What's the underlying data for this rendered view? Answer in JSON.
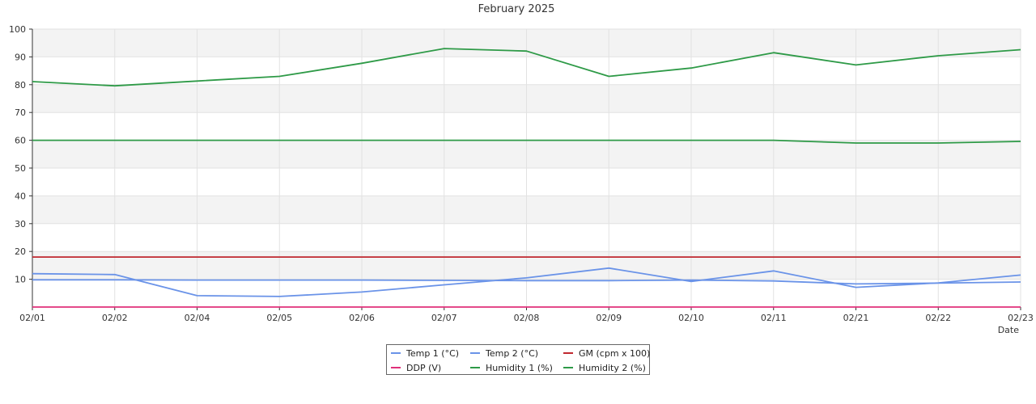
{
  "chart_data": {
    "type": "line",
    "title": "February 2025",
    "xlabel": "Date",
    "ylabel": "",
    "ylim": [
      0,
      100
    ],
    "yticks": [
      10,
      20,
      30,
      40,
      50,
      60,
      70,
      80,
      90,
      100
    ],
    "grid": true,
    "legend_position": "bottom-center",
    "x": [
      "02/01",
      "02/02",
      "02/04",
      "02/05",
      "02/06",
      "02/07",
      "02/08",
      "02/09",
      "02/10",
      "02/11",
      "02/21",
      "02/22",
      "02/23"
    ],
    "series": [
      {
        "name": "Temp 1 (°C)",
        "color": "#6a93e8",
        "values": [
          9.8,
          9.8,
          9.7,
          9.7,
          9.7,
          9.6,
          9.5,
          9.5,
          9.7,
          9.4,
          8.3,
          8.6,
          9.0
        ]
      },
      {
        "name": "Temp 2 (°C)",
        "color": "#6a93e8",
        "values": [
          12.0,
          11.7,
          4.1,
          3.8,
          5.4,
          8.0,
          10.5,
          14.0,
          9.2,
          13.0,
          7.1,
          8.7,
          11.5
        ]
      },
      {
        "name": "GM (cpm x 100)",
        "color": "#c0282f",
        "values": [
          18.0,
          18.0,
          18.0,
          18.0,
          18.0,
          18.0,
          18.0,
          18.0,
          18.0,
          18.0,
          18.0,
          18.0,
          18.0
        ]
      },
      {
        "name": "DDP (V)",
        "color": "#e0307a",
        "values": [
          0,
          0,
          0,
          0,
          0,
          0,
          0,
          0,
          0,
          0,
          0,
          0,
          0
        ]
      },
      {
        "name": "Humidity 1 (%)",
        "color": "#2e9a47",
        "values": [
          81.1,
          79.6,
          81.3,
          83.0,
          87.7,
          93.0,
          92.1,
          83.0,
          86.0,
          91.5,
          87.1,
          90.4,
          92.6
        ]
      },
      {
        "name": "Humidity 2 (%)",
        "color": "#2e9a47",
        "values": [
          60.0,
          60.0,
          60.0,
          60.0,
          60.0,
          60.0,
          60.0,
          60.0,
          60.0,
          60.0,
          59.0,
          59.0,
          59.6
        ]
      }
    ]
  }
}
